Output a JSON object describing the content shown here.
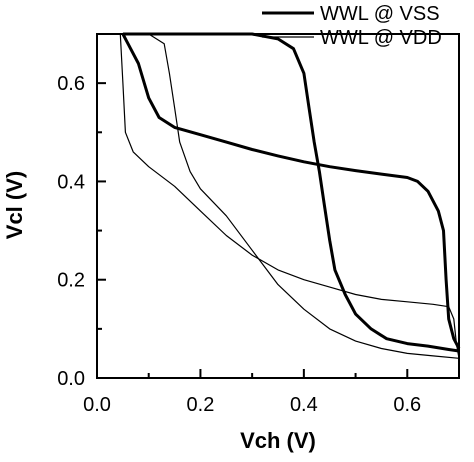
{
  "chart_data": {
    "type": "line",
    "title": "",
    "xlabel": "Vch (V)",
    "ylabel": "Vcl (V)",
    "xlim": [
      0.0,
      0.7
    ],
    "ylim": [
      0.0,
      0.7
    ],
    "x_ticks": [
      0.0,
      0.2,
      0.4,
      0.6
    ],
    "x_tick_labels": [
      "0.0",
      "0.2",
      "0.4",
      "0.6"
    ],
    "y_ticks": [
      0.0,
      0.2,
      0.4,
      0.6
    ],
    "y_tick_labels": [
      "0.0",
      "0.2",
      "0.4",
      "0.6"
    ],
    "grid": false,
    "legend_position": "top-right",
    "series": [
      {
        "name": "WWL @ VSS",
        "color": "#000000",
        "style": "thick",
        "branches": [
          [
            [
              0.05,
              0.7
            ],
            [
              0.08,
              0.64
            ],
            [
              0.1,
              0.57
            ],
            [
              0.12,
              0.53
            ],
            [
              0.15,
              0.51
            ],
            [
              0.2,
              0.495
            ],
            [
              0.25,
              0.48
            ],
            [
              0.3,
              0.465
            ],
            [
              0.35,
              0.452
            ],
            [
              0.4,
              0.44
            ],
            [
              0.45,
              0.43
            ],
            [
              0.5,
              0.422
            ],
            [
              0.55,
              0.415
            ],
            [
              0.6,
              0.408
            ],
            [
              0.62,
              0.4
            ],
            [
              0.64,
              0.38
            ],
            [
              0.66,
              0.34
            ],
            [
              0.67,
              0.3
            ],
            [
              0.675,
              0.2
            ],
            [
              0.68,
              0.12
            ],
            [
              0.69,
              0.08
            ],
            [
              0.7,
              0.06
            ]
          ],
          [
            [
              0.05,
              0.7
            ],
            [
              0.2,
              0.7
            ],
            [
              0.3,
              0.7
            ],
            [
              0.35,
              0.69
            ],
            [
              0.38,
              0.67
            ],
            [
              0.4,
              0.62
            ],
            [
              0.41,
              0.55
            ],
            [
              0.42,
              0.48
            ],
            [
              0.43,
              0.42
            ],
            [
              0.44,
              0.35
            ],
            [
              0.45,
              0.28
            ],
            [
              0.46,
              0.22
            ],
            [
              0.48,
              0.17
            ],
            [
              0.5,
              0.13
            ],
            [
              0.53,
              0.1
            ],
            [
              0.56,
              0.08
            ],
            [
              0.6,
              0.07
            ],
            [
              0.64,
              0.065
            ],
            [
              0.68,
              0.058
            ],
            [
              0.7,
              0.055
            ]
          ]
        ]
      },
      {
        "name": "WWL @ VDD",
        "color": "#000000",
        "style": "thin",
        "branches": [
          [
            [
              0.045,
              0.7
            ],
            [
              0.05,
              0.6
            ],
            [
              0.055,
              0.5
            ],
            [
              0.07,
              0.46
            ],
            [
              0.1,
              0.43
            ],
            [
              0.15,
              0.39
            ],
            [
              0.2,
              0.34
            ],
            [
              0.25,
              0.29
            ],
            [
              0.3,
              0.25
            ],
            [
              0.35,
              0.22
            ],
            [
              0.4,
              0.2
            ],
            [
              0.45,
              0.185
            ],
            [
              0.5,
              0.17
            ],
            [
              0.55,
              0.16
            ],
            [
              0.6,
              0.155
            ],
            [
              0.65,
              0.15
            ],
            [
              0.68,
              0.145
            ],
            [
              0.69,
              0.12
            ],
            [
              0.695,
              0.07
            ],
            [
              0.7,
              0.04
            ]
          ],
          [
            [
              0.06,
              0.7
            ],
            [
              0.1,
              0.7
            ],
            [
              0.13,
              0.68
            ],
            [
              0.14,
              0.62
            ],
            [
              0.15,
              0.55
            ],
            [
              0.16,
              0.48
            ],
            [
              0.18,
              0.42
            ],
            [
              0.2,
              0.385
            ],
            [
              0.25,
              0.33
            ],
            [
              0.3,
              0.26
            ],
            [
              0.35,
              0.19
            ],
            [
              0.4,
              0.14
            ],
            [
              0.45,
              0.1
            ],
            [
              0.5,
              0.075
            ],
            [
              0.55,
              0.06
            ],
            [
              0.6,
              0.05
            ],
            [
              0.65,
              0.045
            ],
            [
              0.7,
              0.04
            ]
          ]
        ]
      }
    ]
  }
}
